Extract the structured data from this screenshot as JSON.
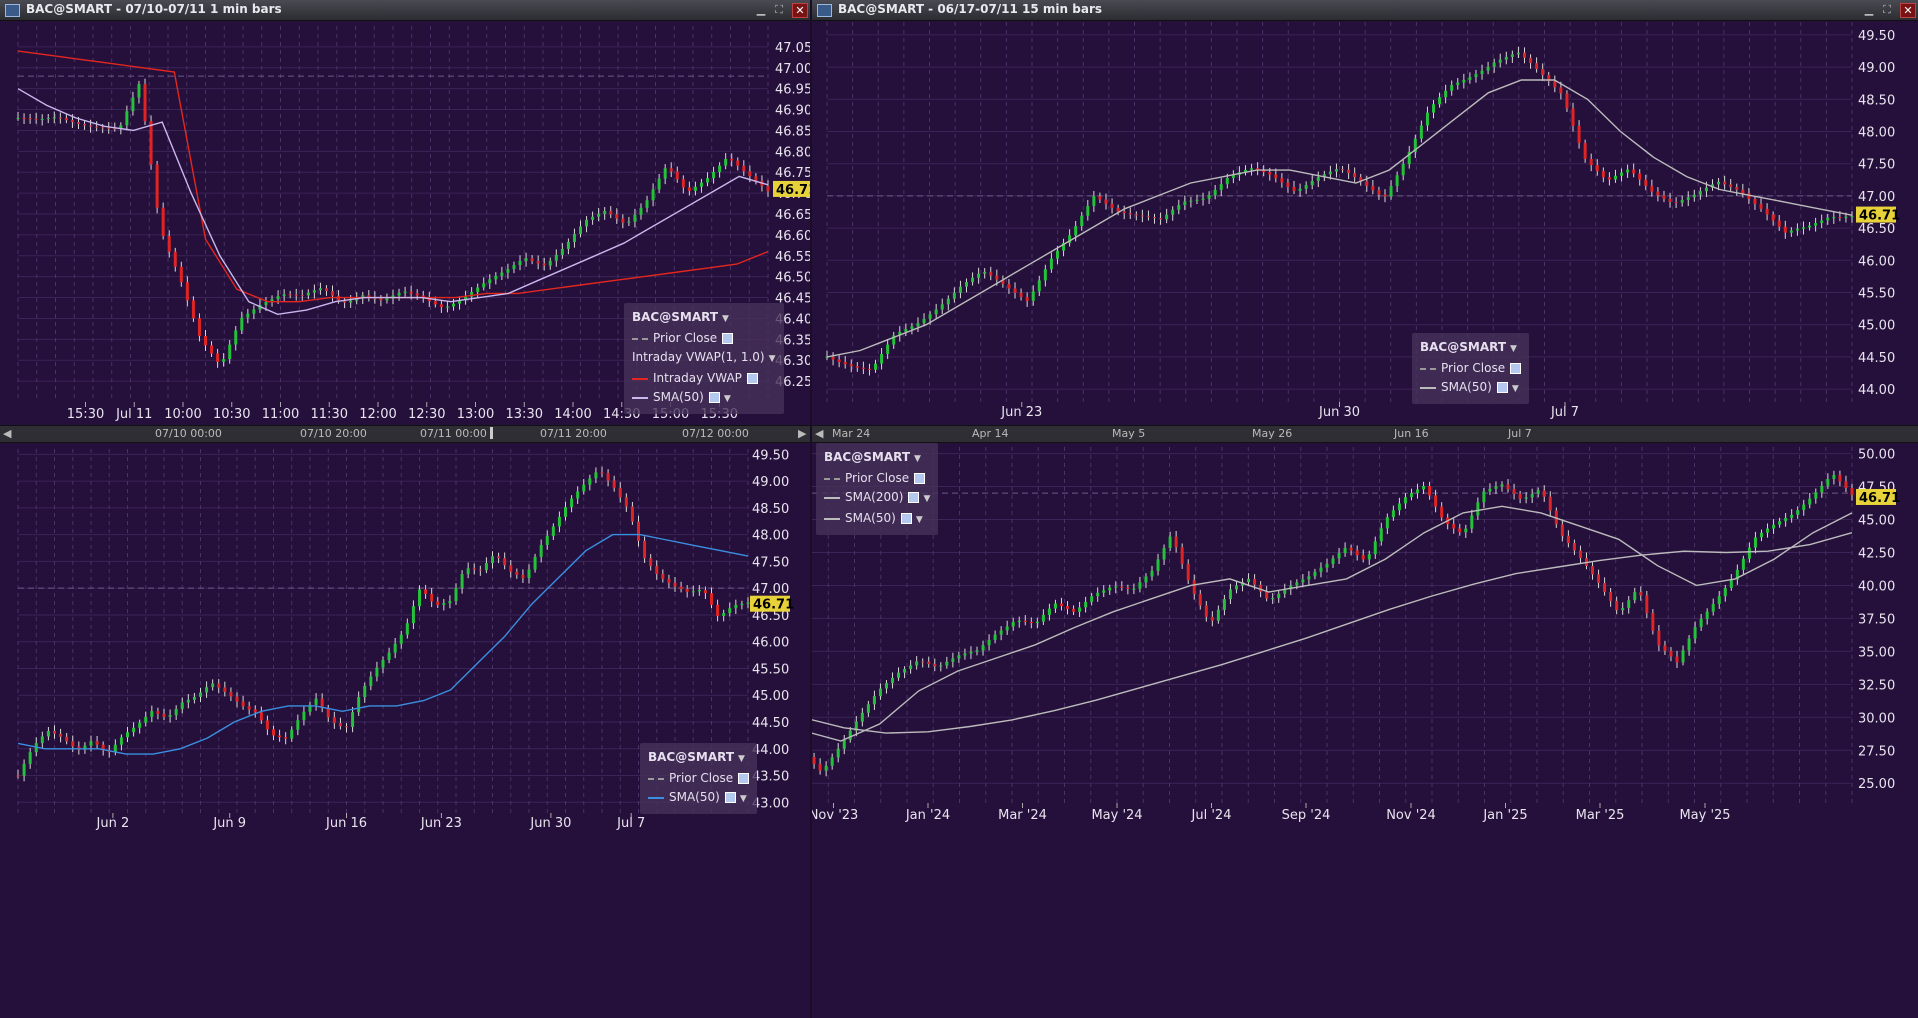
{
  "panels": [
    {
      "title": "BAC@SMART - 07/10-07/11 1 min bars",
      "last_price": "46.71",
      "legend": {
        "symbol": "BAC@SMART",
        "items": [
          {
            "label": "Prior Close",
            "color": "#999999",
            "style": "dashed",
            "checkbox": true,
            "menu": false
          },
          {
            "label": "Intraday VWAP(1, 1.0)",
            "color": "",
            "style": "none",
            "checkbox": false,
            "menu": true
          },
          {
            "label": "Intraday VWAP",
            "color": "#e3271f",
            "style": "solid",
            "checkbox": true,
            "menu": false
          },
          {
            "label": "SMA(50)",
            "color": "#c9b8ee",
            "style": "solid",
            "checkbox": true,
            "menu": true
          }
        ]
      },
      "scrollbar_labels": [
        "07/10 00:00",
        "07/10 20:00",
        "07/11 00:00",
        "07/11 20:00",
        "07/12 00:00"
      ]
    },
    {
      "title": "BAC@SMART - 06/17-07/11 15 min bars",
      "last_price": "46.71",
      "legend": {
        "symbol": "BAC@SMART",
        "items": [
          {
            "label": "Prior Close",
            "color": "#999999",
            "style": "dashed",
            "checkbox": true,
            "menu": false
          },
          {
            "label": "SMA(50)",
            "color": "#bbbbbb",
            "style": "solid",
            "checkbox": true,
            "menu": true
          }
        ]
      },
      "scrollbar_labels": [
        "Mar 24",
        "Apr 14",
        "May 5",
        "May 26",
        "Jun 16",
        "Jul 7"
      ]
    },
    {
      "title": "",
      "last_price": "46.71",
      "legend": {
        "symbol": "BAC@SMART",
        "items": [
          {
            "label": "Prior Close",
            "color": "#999999",
            "style": "dashed",
            "checkbox": true,
            "menu": false
          },
          {
            "label": "SMA(50)",
            "color": "#3a8fe0",
            "style": "solid",
            "checkbox": true,
            "menu": true
          }
        ]
      },
      "scrollbar_labels": []
    },
    {
      "title": "",
      "last_price": "46.71",
      "legend": {
        "symbol": "BAC@SMART",
        "items": [
          {
            "label": "Prior Close",
            "color": "#999999",
            "style": "dashed",
            "checkbox": true,
            "menu": false
          },
          {
            "label": "SMA(200)",
            "color": "#bbbbbb",
            "style": "solid",
            "checkbox": true,
            "menu": true
          },
          {
            "label": "SMA(50)",
            "color": "#bbbbbb",
            "style": "solid",
            "checkbox": true,
            "menu": true
          }
        ]
      },
      "scrollbar_labels": []
    }
  ],
  "chart_data": [
    {
      "type": "candlestick",
      "ylim": [
        46.2,
        47.1
      ],
      "yticks": [
        46.25,
        46.3,
        46.35,
        46.4,
        46.45,
        46.5,
        46.55,
        46.6,
        46.65,
        46.7,
        46.75,
        46.8,
        46.85,
        46.9,
        46.95,
        47.0,
        47.05
      ],
      "xticks": [
        "15:30",
        "Jul 11",
        "10:00",
        "10:30",
        "11:00",
        "11:30",
        "12:00",
        "12:30",
        "13:00",
        "13:30",
        "14:00",
        "14:30",
        "15:00",
        "15:30"
      ],
      "last": 46.71,
      "prior_close": 46.98,
      "close_path": [
        46.88,
        46.87,
        46.88,
        46.87,
        46.86,
        46.85,
        46.96,
        46.62,
        46.5,
        46.35,
        46.28,
        46.4,
        46.44,
        46.46,
        46.45,
        46.47,
        46.44,
        46.46,
        46.44,
        46.46,
        46.45,
        46.43,
        46.45,
        46.48,
        46.51,
        46.55,
        46.53,
        46.57,
        46.63,
        46.66,
        46.63,
        46.68,
        46.76,
        46.7,
        46.74,
        46.79,
        46.74,
        46.7
      ],
      "series": [
        {
          "name": "Intraday VWAP",
          "color": "#e3271f",
          "values": [
            47.04,
            47.03,
            47.02,
            47.01,
            47.0,
            46.99,
            46.59,
            46.47,
            46.44,
            46.44,
            46.45,
            46.45,
            46.45,
            46.45,
            46.45,
            46.46,
            46.46,
            46.47,
            46.48,
            46.49,
            46.5,
            46.51,
            46.52,
            46.53,
            46.56
          ]
        },
        {
          "name": "SMA(50)",
          "color": "#c9b8ee",
          "values": [
            46.95,
            46.91,
            46.88,
            46.86,
            46.85,
            46.87,
            46.7,
            46.55,
            46.44,
            46.41,
            46.42,
            46.44,
            46.45,
            46.45,
            46.45,
            46.44,
            46.45,
            46.46,
            46.49,
            46.52,
            46.55,
            46.58,
            46.62,
            46.66,
            46.7,
            46.74,
            46.72
          ]
        }
      ]
    },
    {
      "type": "candlestick",
      "ylim": [
        43.8,
        49.7
      ],
      "yticks": [
        44.0,
        44.5,
        45.0,
        45.5,
        46.0,
        46.5,
        47.0,
        47.5,
        48.0,
        48.5,
        49.0,
        49.5
      ],
      "xticks": [
        "Jun 23",
        "Jun 30",
        "Jul 7"
      ],
      "last": 46.71,
      "prior_close": 47.0,
      "close_path": [
        44.5,
        44.4,
        44.3,
        44.8,
        45.0,
        45.3,
        45.6,
        45.8,
        45.6,
        45.4,
        46.0,
        46.4,
        47.0,
        46.8,
        46.7,
        46.6,
        46.9,
        47.0,
        47.3,
        47.4,
        47.3,
        47.1,
        47.3,
        47.4,
        47.2,
        47.0,
        47.6,
        48.3,
        48.7,
        48.9,
        49.1,
        49.2,
        48.9,
        48.6,
        47.6,
        47.2,
        47.4,
        47.1,
        46.9,
        47.0,
        47.2,
        47.1,
        46.8,
        46.4,
        46.5,
        46.7,
        46.71
      ],
      "series": [
        {
          "name": "SMA(50)",
          "color": "#bbbbbb",
          "values": [
            44.5,
            44.6,
            44.8,
            45.0,
            45.3,
            45.6,
            45.9,
            46.2,
            46.5,
            46.8,
            47.0,
            47.2,
            47.3,
            47.4,
            47.4,
            47.3,
            47.2,
            47.4,
            47.8,
            48.2,
            48.6,
            48.8,
            48.8,
            48.5,
            48.0,
            47.6,
            47.3,
            47.1,
            47.0,
            46.9,
            46.8,
            46.7
          ]
        }
      ]
    },
    {
      "type": "candlestick",
      "ylim": [
        42.8,
        49.6
      ],
      "yticks": [
        43.0,
        43.5,
        44.0,
        44.5,
        45.0,
        45.5,
        46.0,
        46.5,
        47.0,
        47.5,
        48.0,
        48.5,
        49.0,
        49.5
      ],
      "xticks": [
        "Jun 2",
        "Jun 9",
        "Jun 16",
        "Jun 23",
        "Jun 30",
        "Jul 7"
      ],
      "last": 46.71,
      "prior_close": 47.0,
      "close_path": [
        43.5,
        44.0,
        44.3,
        44.2,
        44.0,
        44.2,
        43.9,
        44.2,
        44.4,
        44.7,
        44.6,
        44.9,
        45.0,
        45.2,
        45.0,
        44.8,
        44.7,
        44.3,
        44.2,
        44.6,
        44.9,
        44.5,
        44.4,
        45.1,
        45.5,
        45.8,
        46.2,
        47.0,
        46.7,
        46.8,
        47.4,
        47.3,
        47.6,
        47.3,
        47.2,
        47.8,
        48.2,
        48.6,
        48.9,
        49.2,
        48.9,
        48.5,
        47.6,
        47.2,
        47.0,
        46.9,
        47.0,
        46.5,
        46.7,
        46.71
      ],
      "series": [
        {
          "name": "SMA(50)",
          "color": "#3a8fe0",
          "values": [
            44.1,
            44.0,
            44.0,
            44.0,
            43.9,
            43.9,
            44.0,
            44.2,
            44.5,
            44.7,
            44.8,
            44.8,
            44.7,
            44.8,
            44.8,
            44.9,
            45.1,
            45.6,
            46.1,
            46.7,
            47.2,
            47.7,
            48.0,
            48.0,
            47.9,
            47.8,
            47.7,
            47.6
          ]
        }
      ]
    },
    {
      "type": "candlestick",
      "ylim": [
        23.5,
        50.5
      ],
      "yticks": [
        25.0,
        27.5,
        30.0,
        32.5,
        35.0,
        37.5,
        40.0,
        42.5,
        45.0,
        47.5,
        50.0
      ],
      "xticks": [
        "Nov '23",
        "Jan '24",
        "Mar '24",
        "May '24",
        "Jul '24",
        "Sep '24",
        "Nov '24",
        "Jan '25",
        "Mar '25",
        "May '25"
      ],
      "last": 46.71,
      "prior_close": 47.0,
      "close_path": [
        27.5,
        26.0,
        28.0,
        30.0,
        32.0,
        33.5,
        34.5,
        33.8,
        34.5,
        35.0,
        36.5,
        37.5,
        37.0,
        38.5,
        38.0,
        39.5,
        40.0,
        39.5,
        41.0,
        44.0,
        40.0,
        37.0,
        39.5,
        40.5,
        39.0,
        40.0,
        40.5,
        41.5,
        43.0,
        42.0,
        45.0,
        46.5,
        47.5,
        45.0,
        44.0,
        47.0,
        47.5,
        46.5,
        47.5,
        44.0,
        42.0,
        40.0,
        38.0,
        40.0,
        35.5,
        34.0,
        37.0,
        39.0,
        41.0,
        43.5,
        44.5,
        45.5,
        47.0,
        48.5,
        46.71
      ],
      "series": [
        {
          "name": "SMA(200)",
          "color": "#bbbbbb",
          "values": [
            30.0,
            29.2,
            28.8,
            28.9,
            29.3,
            29.8,
            30.5,
            31.3,
            32.2,
            33.1,
            34.0,
            35.0,
            36.0,
            37.1,
            38.2,
            39.2,
            40.1,
            40.9,
            41.4,
            41.9,
            42.3,
            42.6,
            42.5,
            42.6,
            43.1,
            44.0
          ]
        },
        {
          "name": "SMA(50)",
          "color": "#bbbbbb",
          "values": [
            29.0,
            28.2,
            29.5,
            32.0,
            33.5,
            34.5,
            35.5,
            36.8,
            38.0,
            39.0,
            40.0,
            40.5,
            39.5,
            40.0,
            40.5,
            42.0,
            44.0,
            45.5,
            46.0,
            45.5,
            44.5,
            43.5,
            41.5,
            40.0,
            40.5,
            42.0,
            44.0,
            45.5
          ]
        }
      ]
    }
  ]
}
